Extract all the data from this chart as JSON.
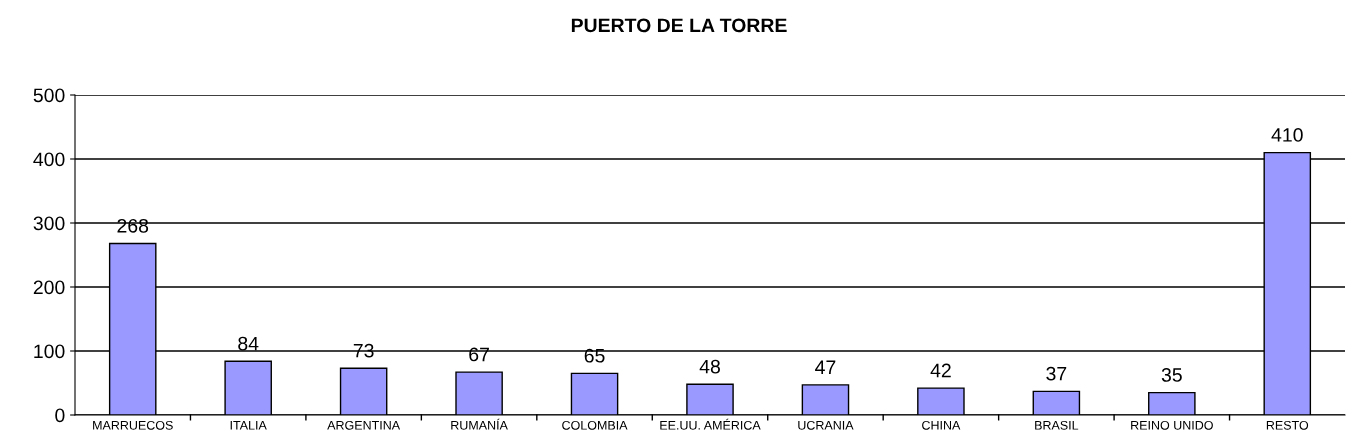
{
  "chart_data": {
    "type": "bar",
    "title": "PUERTO DE LA TORRE",
    "categories": [
      "MARRUECOS",
      "ITALIA",
      "ARGENTINA",
      "RUMANÍA",
      "COLOMBIA",
      "EE.UU. AMÉRICA",
      "UCRANIA",
      "CHINA",
      "BRASIL",
      "REINO UNIDO",
      "RESTO"
    ],
    "values": [
      268,
      84,
      73,
      67,
      65,
      48,
      47,
      42,
      37,
      35,
      410
    ],
    "color": "#9999ff",
    "ylim": [
      0,
      500
    ],
    "yticks": [
      0,
      100,
      200,
      300,
      400,
      500
    ],
    "grid": "y",
    "data_labels": true
  }
}
